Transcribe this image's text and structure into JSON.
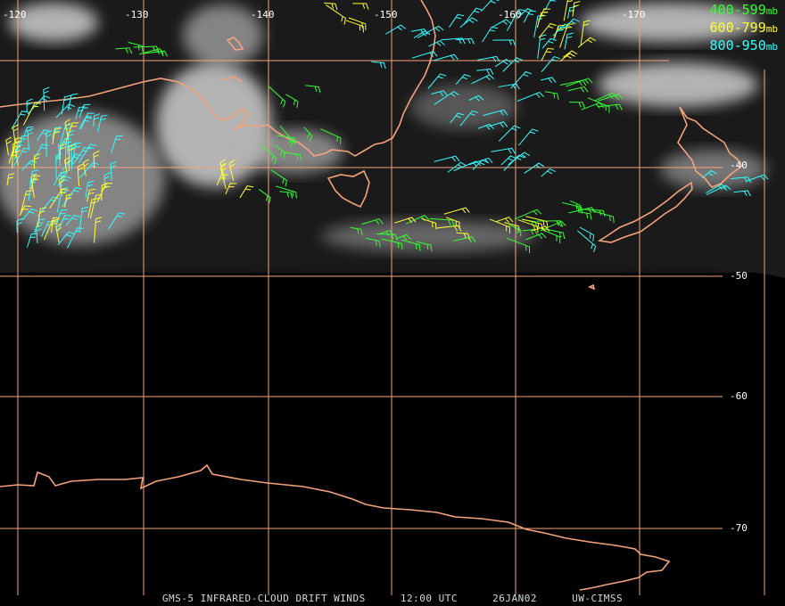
{
  "map": {
    "lon_labels": [
      "-120",
      "-130",
      "-140",
      "-150",
      "-160",
      "-170"
    ],
    "lat_labels": [
      "-40",
      "-50",
      "-60",
      "-70"
    ],
    "colors": {
      "background": "#000000",
      "grid": "#f4a37c",
      "coast": "#f4a37c",
      "cloud": "#cfcfcf",
      "level_400_599": "#33ff33",
      "level_600_799": "#ffff33",
      "level_800_950": "#33ffff"
    }
  },
  "legend": {
    "items": [
      {
        "range": "400-599",
        "unit": "mb",
        "color": "#33ff33"
      },
      {
        "range": "600-799",
        "unit": "mb",
        "color": "#ffff33"
      },
      {
        "range": "800-950",
        "unit": "mb",
        "color": "#33ffff"
      }
    ]
  },
  "footer": {
    "product": "GMS-5 INFRARED-CLOUD DRIFT WINDS",
    "time": "12:00 UTC",
    "date": "26JAN02",
    "source": "UW-CIMSS"
  }
}
